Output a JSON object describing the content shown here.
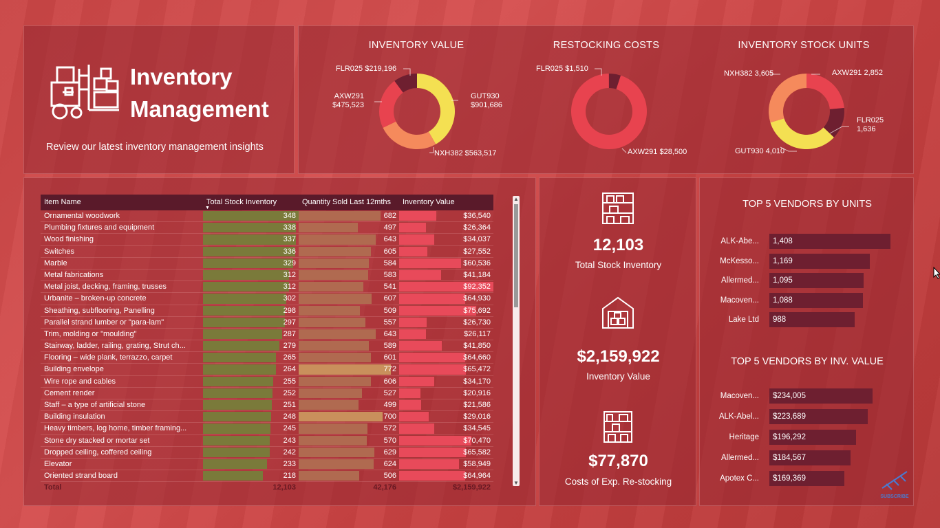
{
  "header": {
    "title_line1": "Inventory",
    "title_line2": "Management",
    "subtitle": "Review our latest inventory management insights",
    "icon": "forklift-icon"
  },
  "donuts": {
    "inventory_value": {
      "title": "INVENTORY VALUE",
      "slices": [
        {
          "label": "GUT930",
          "value": "$901,686",
          "raw": 901686,
          "color": "#f4e052"
        },
        {
          "label": "NXH382",
          "value": "$563,517",
          "raw": 563517,
          "color": "#f58a5c"
        },
        {
          "label": "AXW291",
          "value": "$475,523",
          "raw": 475523,
          "color": "#e8434f"
        },
        {
          "label": "FLR025",
          "value": "$219,196",
          "raw": 219196,
          "color": "#6e1f30"
        }
      ]
    },
    "restocking_costs": {
      "title": "RESTOCKING COSTS",
      "slices": [
        {
          "label": "AXW291",
          "value": "$28,500",
          "raw": 28500,
          "color": "#e8434f"
        },
        {
          "label": "FLR025",
          "value": "$1,510",
          "raw": 1510,
          "color": "#6e1f30"
        }
      ]
    },
    "inventory_units": {
      "title": "INVENTORY STOCK UNITS",
      "slices": [
        {
          "label": "AXW291",
          "value": "2,852",
          "raw": 2852,
          "color": "#e8434f"
        },
        {
          "label": "FLR025",
          "value": "1,636",
          "raw": 1636,
          "color": "#6e1f30"
        },
        {
          "label": "GUT930",
          "value": "4,010",
          "raw": 4010,
          "color": "#f4e052"
        },
        {
          "label": "NXH382",
          "value": "3,605",
          "raw": 3605,
          "color": "#f58a5c"
        }
      ]
    }
  },
  "table": {
    "columns": [
      "Item Name",
      "Total Stock Inventory",
      "Quantity Sold Last 12mths",
      "Inventory Value"
    ],
    "sort_indicator": "▼",
    "rows": [
      {
        "name": "Ornamental woodwork",
        "stock": "348",
        "stock_n": 348,
        "sold": "682",
        "sold_n": 682,
        "value": "$36,540",
        "value_n": 36540
      },
      {
        "name": "Plumbing fixtures and equipment",
        "stock": "338",
        "stock_n": 338,
        "sold": "497",
        "sold_n": 497,
        "value": "$26,364",
        "value_n": 26364
      },
      {
        "name": "Wood finishing",
        "stock": "337",
        "stock_n": 337,
        "sold": "643",
        "sold_n": 643,
        "value": "$34,037",
        "value_n": 34037
      },
      {
        "name": "Switches",
        "stock": "336",
        "stock_n": 336,
        "sold": "605",
        "sold_n": 605,
        "value": "$27,552",
        "value_n": 27552
      },
      {
        "name": "Marble",
        "stock": "329",
        "stock_n": 329,
        "sold": "584",
        "sold_n": 584,
        "value": "$60,536",
        "value_n": 60536
      },
      {
        "name": "Metal fabrications",
        "stock": "312",
        "stock_n": 312,
        "sold": "583",
        "sold_n": 583,
        "value": "$41,184",
        "value_n": 41184
      },
      {
        "name": "Metal joist, decking, framing, trusses",
        "stock": "312",
        "stock_n": 312,
        "sold": "541",
        "sold_n": 541,
        "value": "$92,352",
        "value_n": 92352
      },
      {
        "name": "Urbanite – broken-up concrete",
        "stock": "302",
        "stock_n": 302,
        "sold": "607",
        "sold_n": 607,
        "value": "$64,930",
        "value_n": 64930
      },
      {
        "name": "Sheathing, subflooring, Panelling",
        "stock": "298",
        "stock_n": 298,
        "sold": "509",
        "sold_n": 509,
        "value": "$75,692",
        "value_n": 75692
      },
      {
        "name": "Parallel strand lumber or \"para-lam\"",
        "stock": "297",
        "stock_n": 297,
        "sold": "557",
        "sold_n": 557,
        "value": "$26,730",
        "value_n": 26730
      },
      {
        "name": "Trim, molding or \"moulding\"",
        "stock": "287",
        "stock_n": 287,
        "sold": "643",
        "sold_n": 643,
        "value": "$26,117",
        "value_n": 26117
      },
      {
        "name": "Stairway, ladder, railing, grating, Strut ch...",
        "stock": "279",
        "stock_n": 279,
        "sold": "589",
        "sold_n": 589,
        "value": "$41,850",
        "value_n": 41850
      },
      {
        "name": "Flooring – wide plank, terrazzo, carpet",
        "stock": "265",
        "stock_n": 265,
        "sold": "601",
        "sold_n": 601,
        "value": "$64,660",
        "value_n": 64660
      },
      {
        "name": "Building envelope",
        "stock": "264",
        "stock_n": 264,
        "sold": "772",
        "sold_n": 772,
        "value": "$65,472",
        "value_n": 65472
      },
      {
        "name": "Wire rope and cables",
        "stock": "255",
        "stock_n": 255,
        "sold": "606",
        "sold_n": 606,
        "value": "$34,170",
        "value_n": 34170
      },
      {
        "name": "Cement render",
        "stock": "252",
        "stock_n": 252,
        "sold": "527",
        "sold_n": 527,
        "value": "$20,916",
        "value_n": 20916
      },
      {
        "name": "Staff – a type of artificial stone",
        "stock": "251",
        "stock_n": 251,
        "sold": "499",
        "sold_n": 499,
        "value": "$21,586",
        "value_n": 21586
      },
      {
        "name": "Building insulation",
        "stock": "248",
        "stock_n": 248,
        "sold": "700",
        "sold_n": 700,
        "value": "$29,016",
        "value_n": 29016
      },
      {
        "name": "Heavy timbers, log home, timber framing...",
        "stock": "245",
        "stock_n": 245,
        "sold": "572",
        "sold_n": 572,
        "value": "$34,545",
        "value_n": 34545
      },
      {
        "name": "Stone dry stacked or mortar set",
        "stock": "243",
        "stock_n": 243,
        "sold": "570",
        "sold_n": 570,
        "value": "$70,470",
        "value_n": 70470
      },
      {
        "name": "Dropped ceiling, coffered ceiling",
        "stock": "242",
        "stock_n": 242,
        "sold": "629",
        "sold_n": 629,
        "value": "$65,582",
        "value_n": 65582
      },
      {
        "name": "Elevator",
        "stock": "233",
        "stock_n": 233,
        "sold": "624",
        "sold_n": 624,
        "value": "$58,949",
        "value_n": 58949
      },
      {
        "name": "Oriented strand board",
        "stock": "218",
        "stock_n": 218,
        "sold": "506",
        "sold_n": 506,
        "value": "$64,964",
        "value_n": 64964
      }
    ],
    "total": {
      "label": "Total",
      "stock": "12,103",
      "sold": "42,176",
      "value": "$2,159,922"
    }
  },
  "kpis": [
    {
      "value": "12,103",
      "label": "Total Stock Inventory",
      "icon": "shelves-icon"
    },
    {
      "value": "$2,159,922",
      "label": "Inventory Value",
      "icon": "warehouse-icon"
    },
    {
      "value": "$77,870",
      "label": "Costs of Exp. Re-stocking",
      "icon": "storage-rack-icon"
    }
  ],
  "vendors_units": {
    "title": "TOP 5 VENDORS BY UNITS",
    "items": [
      {
        "name": "ALK-Abe...",
        "value": "1,408",
        "raw": 1408
      },
      {
        "name": "McKesso...",
        "value": "1,169",
        "raw": 1169
      },
      {
        "name": "Allermed...",
        "value": "1,095",
        "raw": 1095
      },
      {
        "name": "Macoven...",
        "value": "1,088",
        "raw": 1088
      },
      {
        "name": "Lake Ltd",
        "value": "988",
        "raw": 988
      }
    ]
  },
  "vendors_value": {
    "title": "TOP 5 VENDORS BY INV. VALUE",
    "items": [
      {
        "name": "Macoven...",
        "value": "$234,005",
        "raw": 234005
      },
      {
        "name": "ALK-Abel...",
        "value": "$223,689",
        "raw": 223689
      },
      {
        "name": "Heritage",
        "value": "$196,292",
        "raw": 196292
      },
      {
        "name": "Allermed...",
        "value": "$184,567",
        "raw": 184567
      },
      {
        "name": "Apotex C...",
        "value": "$169,369",
        "raw": 169369
      }
    ]
  },
  "subscribe": {
    "label": "SUBSCRIBE"
  }
}
